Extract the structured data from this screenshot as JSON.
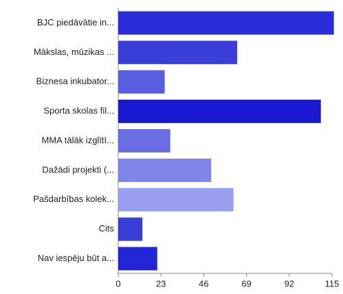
{
  "chart_data": {
    "type": "barh",
    "categories": [
      "BJC piedāvātie in...",
      "Mākslas, mūzikas ...",
      "Biznesa inkubator...",
      "Sporta skolas fil...",
      "MMA tālāk izglītī...",
      "Dažādi projekti (...",
      "Pašdarbības kolek...",
      "Cits",
      "Nav iespēju būt a..."
    ],
    "values": [
      116,
      64,
      25,
      109,
      28,
      50,
      62,
      13,
      21
    ],
    "colors": [
      "#2a2ed8",
      "#3a3fd8",
      "#5a5fe0",
      "#1818d2",
      "#6a6ee2",
      "#7f84e8",
      "#9a9eee",
      "#3a3ed8",
      "#2226d4"
    ],
    "xlim": [
      0,
      115
    ],
    "xticks": [
      0,
      23,
      46,
      69,
      92,
      115
    ],
    "grid": false
  }
}
